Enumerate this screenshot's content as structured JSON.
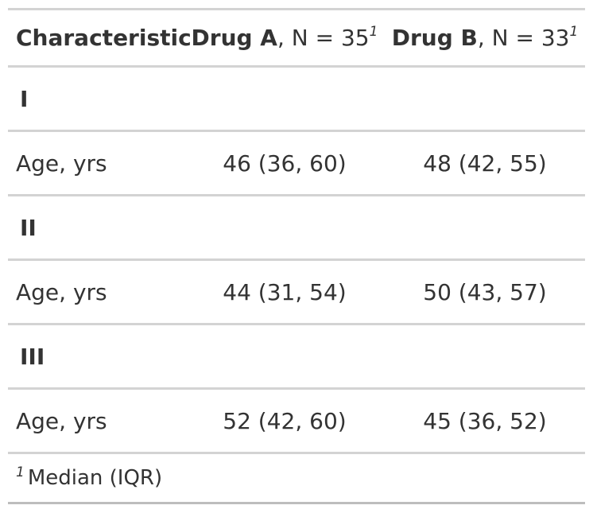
{
  "table": {
    "headers": {
      "characteristic": "Characteristic",
      "drug_a": {
        "name": "Drug A",
        "n_text": ", N = 35",
        "marker": "1"
      },
      "drug_b": {
        "name": "Drug B",
        "n_text": ", N = 33",
        "marker": "1"
      }
    },
    "groups": [
      {
        "label": "I",
        "row": {
          "label": "Age, yrs",
          "drug_a": "46 (36, 60)",
          "drug_b": "48 (42, 55)"
        }
      },
      {
        "label": "II",
        "row": {
          "label": "Age, yrs",
          "drug_a": "44 (31, 54)",
          "drug_b": "50 (43, 57)"
        }
      },
      {
        "label": "III",
        "row": {
          "label": "Age, yrs",
          "drug_a": "52 (42, 60)",
          "drug_b": "45 (36, 52)"
        }
      }
    ],
    "footnote": {
      "marker": "1",
      "text": "Median (IQR)"
    }
  },
  "colors": {
    "text": "#333333",
    "rule": "#d3d3d3"
  }
}
